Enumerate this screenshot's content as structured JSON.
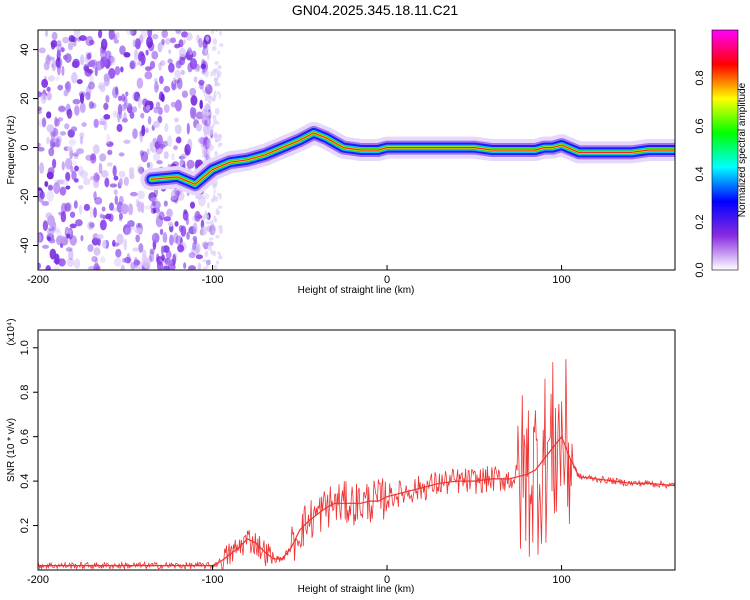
{
  "title": "GN04.2025.345.18.11.C21",
  "chart_data": [
    {
      "type": "heatmap",
      "title": "",
      "xlabel": "Height of straight line (km)",
      "ylabel": "Frequency (Hz)",
      "xlim": [
        -200,
        165
      ],
      "ylim": [
        -50,
        48
      ],
      "xticks": [
        -200,
        -100,
        0,
        100
      ],
      "yticks": [
        -40,
        -20,
        0,
        20,
        40
      ],
      "grid": false,
      "colorbar": {
        "label": "Normalized spectral amplitude",
        "range": [
          0,
          1
        ],
        "ticks": [
          0.0,
          0.2,
          0.4,
          0.6,
          0.8
        ],
        "tick_labels": [
          "0.0",
          "0.2",
          "0.4",
          "0.6",
          "0.8"
        ],
        "colors": [
          "#ffffff",
          "#8a2be2",
          "#0000ff",
          "#00ffff",
          "#00ff00",
          "#ffff00",
          "#ff0000",
          "#ff00ff"
        ]
      },
      "ridge": {
        "x": [
          -135,
          -120,
          -110,
          -100,
          -90,
          -80,
          -70,
          -60,
          -50,
          -42,
          -35,
          -25,
          -15,
          -5,
          0,
          10,
          20,
          30,
          40,
          50,
          60,
          70,
          80,
          85,
          90,
          95,
          100,
          110,
          120,
          130,
          140,
          150,
          165
        ],
        "y": [
          -13,
          -12,
          -15,
          -9,
          -6,
          -5,
          -3,
          0,
          3,
          6,
          4,
          0,
          -1,
          -1,
          0,
          0,
          0,
          0,
          0,
          0,
          -1,
          -1,
          -1,
          -1,
          0,
          0,
          1,
          -2,
          -2,
          -2,
          -2,
          -1,
          -1
        ]
      }
    },
    {
      "type": "line",
      "title": "",
      "xlabel": "Height of straight line (km)",
      "ylabel": "SNR (10 * v/v)",
      "yscale_label": "(x10⁴)",
      "xlim": [
        -200,
        165
      ],
      "ylim": [
        0,
        1.08
      ],
      "xticks": [
        -200,
        -100,
        0,
        100
      ],
      "yticks": [
        0.2,
        0.4,
        0.6,
        0.8,
        1.0
      ],
      "ytick_labels": [
        "0.2",
        "0.4",
        "0.6",
        "0.8",
        "1.0"
      ],
      "grid": false,
      "line_color": "#ee3333",
      "series": [
        {
          "x": [
            -200,
            -180,
            -160,
            -140,
            -120,
            -100,
            -95,
            -90,
            -85,
            -80,
            -75,
            -70,
            -65,
            -60,
            -55,
            -50,
            -45,
            -40,
            -35,
            -30,
            -25,
            -20,
            -15,
            -10,
            -5,
            0,
            10,
            20,
            30,
            40,
            50,
            60,
            70,
            75,
            80,
            85,
            90,
            95,
            100,
            105,
            110,
            120,
            130,
            140,
            150,
            165
          ],
          "y": [
            0.02,
            0.02,
            0.02,
            0.02,
            0.02,
            0.02,
            0.04,
            0.07,
            0.1,
            0.14,
            0.12,
            0.08,
            0.05,
            0.05,
            0.1,
            0.18,
            0.22,
            0.25,
            0.28,
            0.3,
            0.3,
            0.3,
            0.3,
            0.31,
            0.31,
            0.33,
            0.35,
            0.37,
            0.39,
            0.4,
            0.4,
            0.41,
            0.41,
            0.42,
            0.43,
            0.45,
            0.5,
            0.55,
            0.6,
            0.5,
            0.42,
            0.41,
            0.4,
            0.39,
            0.39,
            0.38
          ]
        }
      ]
    }
  ]
}
